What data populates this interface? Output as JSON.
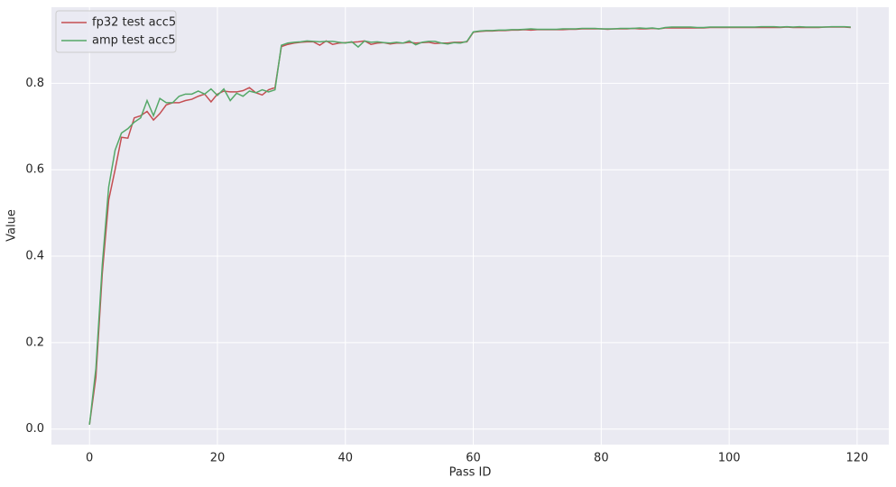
{
  "chart_data": {
    "type": "line",
    "x_label": "Pass ID",
    "y_label": "Value",
    "x": [
      0,
      1,
      2,
      3,
      4,
      5,
      6,
      7,
      8,
      9,
      10,
      11,
      12,
      13,
      14,
      15,
      16,
      17,
      18,
      19,
      20,
      21,
      22,
      23,
      24,
      25,
      26,
      27,
      28,
      29,
      30,
      31,
      32,
      33,
      34,
      35,
      36,
      37,
      38,
      39,
      40,
      41,
      42,
      43,
      44,
      45,
      46,
      47,
      48,
      49,
      50,
      51,
      52,
      53,
      54,
      55,
      56,
      57,
      58,
      59,
      60,
      61,
      62,
      63,
      64,
      65,
      66,
      67,
      68,
      69,
      70,
      71,
      72,
      73,
      74,
      75,
      76,
      77,
      78,
      79,
      80,
      81,
      82,
      83,
      84,
      85,
      86,
      87,
      88,
      89,
      90,
      91,
      92,
      93,
      94,
      95,
      96,
      97,
      98,
      99,
      100,
      101,
      102,
      103,
      104,
      105,
      106,
      107,
      108,
      109,
      110,
      111,
      112,
      113,
      114,
      115,
      116,
      117,
      118,
      119
    ],
    "series": [
      {
        "name": "fp32 test acc5",
        "color": "#c44e52",
        "values": [
          0.01,
          0.12,
          0.36,
          0.53,
          0.6,
          0.675,
          0.673,
          0.72,
          0.725,
          0.735,
          0.715,
          0.73,
          0.75,
          0.755,
          0.755,
          0.76,
          0.763,
          0.77,
          0.775,
          0.757,
          0.775,
          0.782,
          0.78,
          0.78,
          0.783,
          0.79,
          0.778,
          0.773,
          0.785,
          0.79,
          0.885,
          0.89,
          0.893,
          0.895,
          0.896,
          0.896,
          0.888,
          0.898,
          0.89,
          0.893,
          0.894,
          0.895,
          0.896,
          0.898,
          0.89,
          0.893,
          0.894,
          0.891,
          0.893,
          0.893,
          0.895,
          0.893,
          0.894,
          0.895,
          0.892,
          0.893,
          0.893,
          0.895,
          0.895,
          0.896,
          0.918,
          0.92,
          0.921,
          0.921,
          0.922,
          0.922,
          0.923,
          0.923,
          0.924,
          0.923,
          0.924,
          0.924,
          0.924,
          0.924,
          0.924,
          0.925,
          0.925,
          0.926,
          0.926,
          0.926,
          0.926,
          0.925,
          0.926,
          0.926,
          0.926,
          0.927,
          0.926,
          0.926,
          0.927,
          0.926,
          0.928,
          0.928,
          0.928,
          0.928,
          0.928,
          0.928,
          0.928,
          0.929,
          0.929,
          0.929,
          0.929,
          0.929,
          0.929,
          0.929,
          0.929,
          0.929,
          0.929,
          0.929,
          0.929,
          0.93,
          0.929,
          0.929,
          0.929,
          0.929,
          0.929,
          0.93,
          0.93,
          0.93,
          0.93,
          0.929
        ]
      },
      {
        "name": "amp test acc5",
        "color": "#55a868",
        "values": [
          0.01,
          0.14,
          0.38,
          0.56,
          0.645,
          0.685,
          0.695,
          0.71,
          0.72,
          0.76,
          0.725,
          0.765,
          0.755,
          0.755,
          0.77,
          0.775,
          0.775,
          0.782,
          0.775,
          0.787,
          0.772,
          0.787,
          0.76,
          0.777,
          0.77,
          0.782,
          0.778,
          0.785,
          0.78,
          0.785,
          0.888,
          0.893,
          0.895,
          0.896,
          0.898,
          0.897,
          0.896,
          0.897,
          0.897,
          0.895,
          0.893,
          0.896,
          0.884,
          0.898,
          0.895,
          0.896,
          0.894,
          0.893,
          0.895,
          0.893,
          0.898,
          0.889,
          0.895,
          0.897,
          0.897,
          0.893,
          0.891,
          0.894,
          0.893,
          0.897,
          0.919,
          0.921,
          0.922,
          0.922,
          0.923,
          0.923,
          0.924,
          0.924,
          0.925,
          0.926,
          0.925,
          0.925,
          0.925,
          0.925,
          0.926,
          0.926,
          0.926,
          0.927,
          0.927,
          0.927,
          0.926,
          0.926,
          0.926,
          0.927,
          0.927,
          0.927,
          0.928,
          0.927,
          0.928,
          0.926,
          0.929,
          0.93,
          0.93,
          0.93,
          0.93,
          0.929,
          0.929,
          0.93,
          0.93,
          0.93,
          0.93,
          0.93,
          0.93,
          0.93,
          0.93,
          0.931,
          0.931,
          0.931,
          0.93,
          0.931,
          0.93,
          0.931,
          0.93,
          0.93,
          0.93,
          0.93,
          0.931,
          0.931,
          0.931,
          0.93
        ]
      }
    ],
    "xlim": [
      -5.95,
      124.95
    ],
    "ylim": [
      -0.036,
      0.976
    ],
    "xticks": [
      0,
      20,
      40,
      60,
      80,
      100,
      120
    ],
    "yticks": [
      {
        "value": 0,
        "label": "0.0"
      },
      0.2,
      0.4,
      0.6,
      0.8
    ],
    "grid": true,
    "legend": "upper left",
    "background": "#eaeaf2"
  }
}
